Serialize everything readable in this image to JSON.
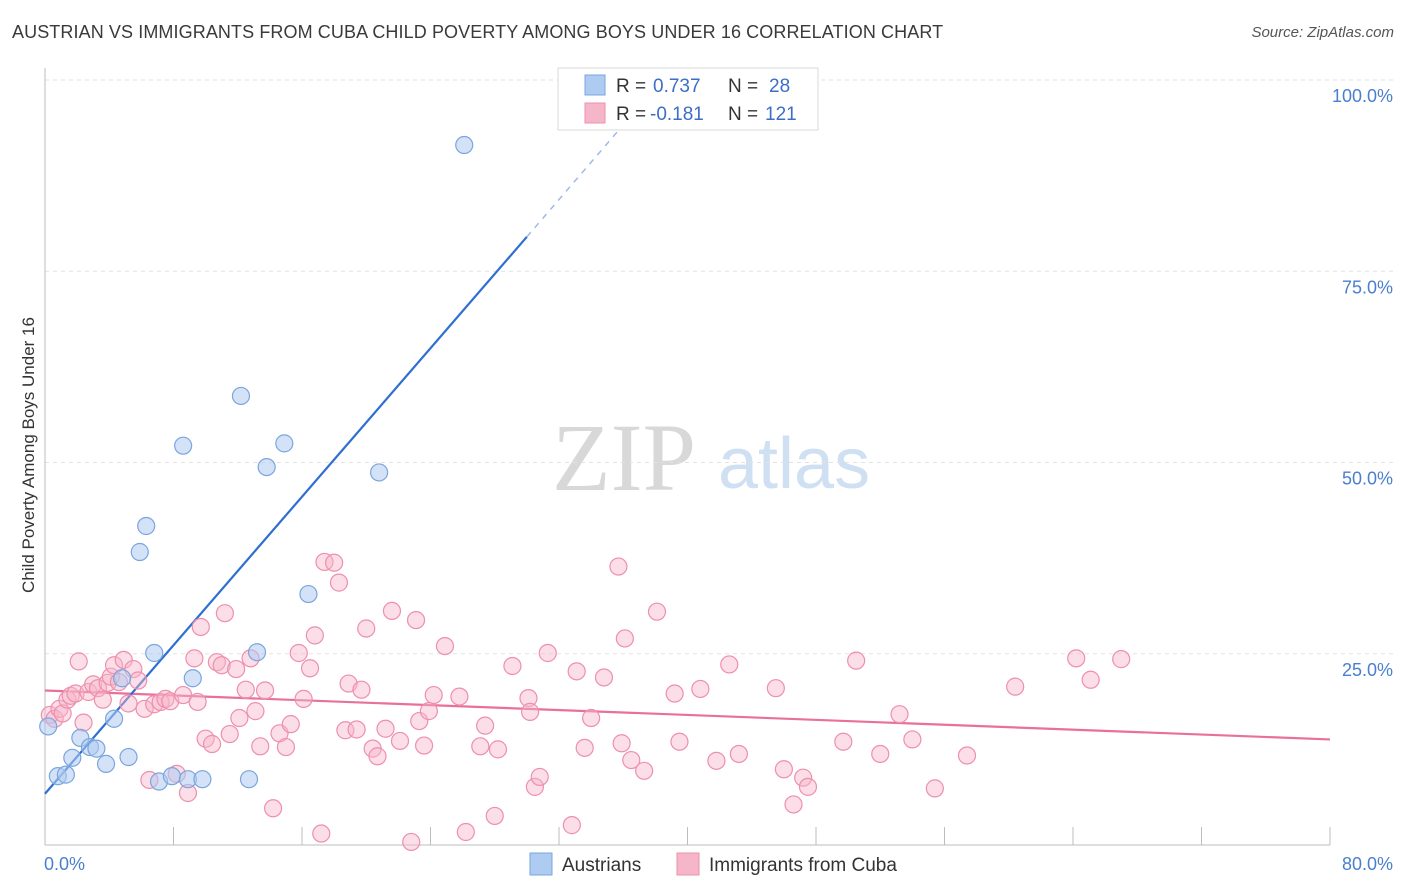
{
  "title": "AUSTRIAN VS IMMIGRANTS FROM CUBA CHILD POVERTY AMONG BOYS UNDER 16 CORRELATION CHART",
  "source": "Source: ZipAtlas.com",
  "watermark": {
    "zip": "ZIP",
    "atlas": "atlas"
  },
  "legend_top": {
    "rows": [
      {
        "r_label": "R =",
        "r_value": "0.737",
        "n_label": "N =",
        "n_value": "28",
        "color": "#aecbf1"
      },
      {
        "r_label": "R =",
        "r_value": "-0.181",
        "n_label": "N =",
        "n_value": "121",
        "color": "#f6b6c9"
      }
    ]
  },
  "legend_bottom": [
    {
      "label": "Austrians",
      "color": "#aecbf1"
    },
    {
      "label": "Immigrants from Cuba",
      "color": "#f6b6c9"
    }
  ],
  "chart_data": {
    "type": "scatter",
    "title": "AUSTRIAN VS IMMIGRANTS FROM CUBA CHILD POVERTY AMONG BOYS UNDER 16 CORRELATION CHART",
    "xlabel": "",
    "ylabel": "Child Poverty Among Boys Under 16",
    "xlim": [
      0,
      80
    ],
    "ylim": [
      0,
      100
    ],
    "x_tick_labels": [
      "0.0%",
      "80.0%"
    ],
    "y_tick_labels": [
      "25.0%",
      "50.0%",
      "75.0%",
      "100.0%"
    ],
    "y_ticks": [
      25,
      50,
      75,
      100
    ],
    "grid": true,
    "colors": {
      "austrians": "#aecbf1",
      "austrians_edge": "#7aa6dd",
      "austrians_line": "#2f6fd1",
      "cuba": "#f6b6c9",
      "cuba_edge": "#ee8fad",
      "cuba_line": "#e9709a"
    },
    "series": [
      {
        "name": "Austrians",
        "points": [
          [
            0.2,
            15.5
          ],
          [
            0.8,
            9
          ],
          [
            1.3,
            9.2
          ],
          [
            1.7,
            11.4
          ],
          [
            2.2,
            14
          ],
          [
            2.8,
            12.8
          ],
          [
            3.2,
            12.6
          ],
          [
            3.8,
            10.6
          ],
          [
            4.3,
            16.5
          ],
          [
            4.8,
            21.8
          ],
          [
            5.2,
            11.5
          ],
          [
            5.9,
            38.3
          ],
          [
            6.3,
            41.7
          ],
          [
            6.8,
            25.1
          ],
          [
            7.1,
            8.3
          ],
          [
            7.9,
            9.0
          ],
          [
            8.6,
            52.2
          ],
          [
            8.9,
            8.6
          ],
          [
            9.2,
            21.8
          ],
          [
            9.8,
            8.6
          ],
          [
            12.2,
            58.7
          ],
          [
            12.7,
            8.6
          ],
          [
            13.2,
            25.2
          ],
          [
            13.8,
            49.4
          ],
          [
            14.9,
            52.5
          ],
          [
            16.4,
            32.8
          ],
          [
            20.8,
            48.7
          ],
          [
            26.1,
            91.5
          ]
        ],
        "trend": {
          "x": [
            0,
            30
          ],
          "y": [
            6.7,
            79.5
          ],
          "dashed_to": [
            38,
            99
          ]
        }
      },
      {
        "name": "Immigrants from Cuba",
        "points": [
          [
            0.3,
            17
          ],
          [
            0.6,
            16.5
          ],
          [
            0.9,
            17.8
          ],
          [
            1.1,
            17.2
          ],
          [
            1.4,
            19
          ],
          [
            1.6,
            19.5
          ],
          [
            1.9,
            19.8
          ],
          [
            2.1,
            24
          ],
          [
            2.4,
            16
          ],
          [
            2.7,
            20
          ],
          [
            3.0,
            21
          ],
          [
            3.3,
            20.5
          ],
          [
            3.6,
            19
          ],
          [
            3.9,
            21.2
          ],
          [
            4.1,
            22
          ],
          [
            4.3,
            23.5
          ],
          [
            4.6,
            21.3
          ],
          [
            4.9,
            24.2
          ],
          [
            5.2,
            18.5
          ],
          [
            5.5,
            23
          ],
          [
            5.8,
            21.5
          ],
          [
            6.2,
            17.8
          ],
          [
            6.5,
            8.5
          ],
          [
            6.8,
            18.4
          ],
          [
            7.2,
            18.7
          ],
          [
            7.5,
            19.1
          ],
          [
            7.8,
            18.8
          ],
          [
            8.2,
            9.3
          ],
          [
            8.6,
            19.6
          ],
          [
            8.9,
            6.8
          ],
          [
            9.3,
            24.4
          ],
          [
            9.5,
            18.7
          ],
          [
            9.7,
            28.5
          ],
          [
            10.0,
            13.9
          ],
          [
            10.4,
            13.2
          ],
          [
            10.7,
            23.9
          ],
          [
            11.0,
            23.5
          ],
          [
            11.2,
            30.3
          ],
          [
            11.5,
            14.5
          ],
          [
            11.9,
            23
          ],
          [
            12.1,
            16.6
          ],
          [
            12.5,
            20.3
          ],
          [
            12.8,
            24.4
          ],
          [
            13.1,
            17.5
          ],
          [
            13.4,
            12.9
          ],
          [
            13.7,
            20.2
          ],
          [
            14.2,
            4.8
          ],
          [
            14.6,
            14.6
          ],
          [
            15.0,
            12.8
          ],
          [
            15.3,
            15.8
          ],
          [
            15.8,
            25.1
          ],
          [
            16.1,
            19.1
          ],
          [
            16.5,
            23.1
          ],
          [
            16.8,
            27.4
          ],
          [
            17.2,
            1.5
          ],
          [
            17.4,
            37
          ],
          [
            18.0,
            36.9
          ],
          [
            18.3,
            34.3
          ],
          [
            18.7,
            15
          ],
          [
            18.9,
            21.1
          ],
          [
            19.4,
            15.1
          ],
          [
            19.7,
            20.3
          ],
          [
            20.0,
            28.3
          ],
          [
            20.4,
            12.6
          ],
          [
            20.7,
            11.6
          ],
          [
            21.2,
            15.2
          ],
          [
            21.6,
            30.6
          ],
          [
            22.1,
            13.6
          ],
          [
            22.8,
            0.4
          ],
          [
            23.1,
            29.4
          ],
          [
            23.3,
            16.2
          ],
          [
            23.6,
            13
          ],
          [
            23.9,
            17.5
          ],
          [
            24.2,
            19.6
          ],
          [
            24.9,
            26
          ],
          [
            25.8,
            19.4
          ],
          [
            26.2,
            1.7
          ],
          [
            27.1,
            12.9
          ],
          [
            27.4,
            15.6
          ],
          [
            28.0,
            3.8
          ],
          [
            28.2,
            12.5
          ],
          [
            29.1,
            23.4
          ],
          [
            30.1,
            19.2
          ],
          [
            30.2,
            17.4
          ],
          [
            30.5,
            7.6
          ],
          [
            30.8,
            8.9
          ],
          [
            31.3,
            25.1
          ],
          [
            32.8,
            2.6
          ],
          [
            33.1,
            22.7
          ],
          [
            33.6,
            12.7
          ],
          [
            34.0,
            16.6
          ],
          [
            34.8,
            21.9
          ],
          [
            35.7,
            36.4
          ],
          [
            35.9,
            13.3
          ],
          [
            36.1,
            27
          ],
          [
            36.5,
            11.1
          ],
          [
            37.3,
            9.7
          ],
          [
            38.1,
            30.5
          ],
          [
            39.2,
            19.8
          ],
          [
            39.5,
            13.5
          ],
          [
            40.8,
            20.4
          ],
          [
            41.8,
            11
          ],
          [
            42.6,
            23.6
          ],
          [
            43.2,
            11.9
          ],
          [
            45.5,
            20.5
          ],
          [
            46.0,
            9.9
          ],
          [
            46.6,
            5.3
          ],
          [
            47.2,
            8.8
          ],
          [
            47.5,
            7.6
          ],
          [
            49.7,
            13.5
          ],
          [
            50.5,
            24.1
          ],
          [
            52.0,
            11.9
          ],
          [
            53.2,
            17.1
          ],
          [
            54.0,
            13.8
          ],
          [
            55.4,
            7.4
          ],
          [
            57.4,
            11.7
          ],
          [
            60.4,
            20.7
          ],
          [
            64.2,
            24.4
          ],
          [
            65.1,
            21.6
          ],
          [
            67.0,
            24.3
          ]
        ],
        "trend": {
          "x": [
            0,
            80
          ],
          "y": [
            20.2,
            13.8
          ]
        }
      }
    ]
  }
}
